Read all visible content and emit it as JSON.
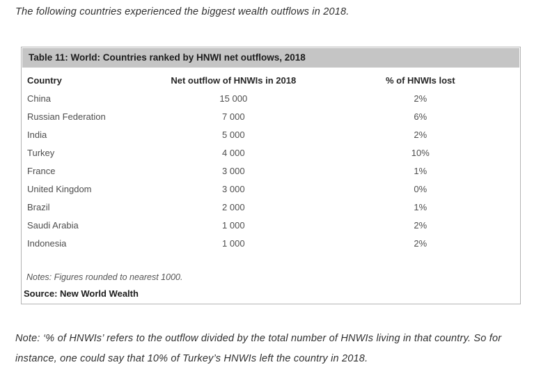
{
  "intro": "The following countries experienced the biggest wealth outflows in 2018.",
  "table": {
    "title": "Table 11: World: Countries ranked by HNWI net outflows, 2018",
    "columns": [
      "Country",
      "Net outflow of HNWIs in 2018",
      "% of HNWIs lost"
    ],
    "rows": [
      {
        "country": "China",
        "outflow": "15 000",
        "pct_lost": "2%"
      },
      {
        "country": "Russian Federation",
        "outflow": "7 000",
        "pct_lost": "6%"
      },
      {
        "country": "India",
        "outflow": "5 000",
        "pct_lost": "2%"
      },
      {
        "country": "Turkey",
        "outflow": "4 000",
        "pct_lost": "10%"
      },
      {
        "country": "France",
        "outflow": "3 000",
        "pct_lost": "1%"
      },
      {
        "country": "United Kingdom",
        "outflow": "3 000",
        "pct_lost": "0%"
      },
      {
        "country": "Brazil",
        "outflow": "2 000",
        "pct_lost": "1%"
      },
      {
        "country": "Saudi Arabia",
        "outflow": "1 000",
        "pct_lost": "2%"
      },
      {
        "country": "Indonesia",
        "outflow": "1 000",
        "pct_lost": "2%"
      }
    ],
    "notes": "Notes: Figures rounded to nearest 1000.",
    "source": "Source: New World Wealth"
  },
  "footnote": {
    "line1": "Note: ‘% of HNWIs’ refers to the outflow divided by the total number of HNWIs living in that country. So for",
    "line2": "instance, one could say that 10% of Turkey’s HNWIs left the country in 2018."
  },
  "colors": {
    "table_header_bg": "#c5c5c5",
    "table_border": "#b3b3b3"
  }
}
